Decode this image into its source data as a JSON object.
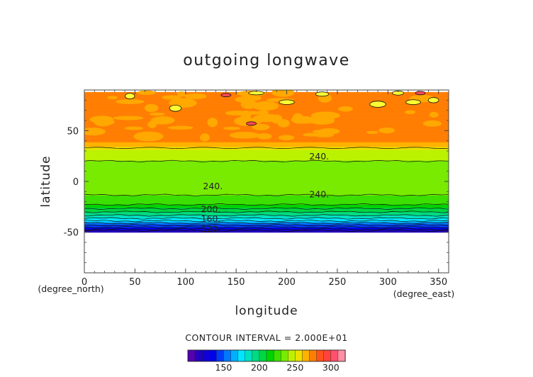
{
  "chart_data": {
    "type": "heatmap",
    "title": "outgoing longwave",
    "xlabel": "longitude",
    "ylabel": "latitude",
    "x_unit_label": "(degree_east)",
    "y_unit_label": "(degree_north)",
    "xlim": [
      0,
      360
    ],
    "ylim": [
      -90,
      90
    ],
    "x_ticks": [
      0,
      50,
      100,
      150,
      200,
      250,
      300,
      350
    ],
    "y_ticks": [
      -50,
      0,
      50
    ],
    "data_lat_range": [
      -50,
      88
    ],
    "contour_interval_text": "CONTOUR INTERVAL = 2.000E+01",
    "contour_labels": [
      "240.",
      "240.",
      "240.",
      "200.",
      "160.",
      "120."
    ],
    "lat_profile": {
      "lat": [
        88,
        70,
        50,
        40,
        35,
        30,
        20,
        10,
        0,
        -10,
        -20,
        -25,
        -30,
        -35,
        -40,
        -45,
        -48,
        -50
      ],
      "value": [
        270,
        275,
        276,
        275,
        262,
        245,
        240,
        238,
        236,
        232,
        226,
        215,
        200,
        185,
        165,
        140,
        125,
        105
      ]
    },
    "colorbar": {
      "ticks": [
        150,
        200,
        250,
        300
      ],
      "range": [
        100,
        320
      ],
      "step": 10
    },
    "colors": {
      "background": "#ffffff",
      "axis": "#444444",
      "contour": "#111111",
      "warm_patch": "#ffff33"
    }
  }
}
